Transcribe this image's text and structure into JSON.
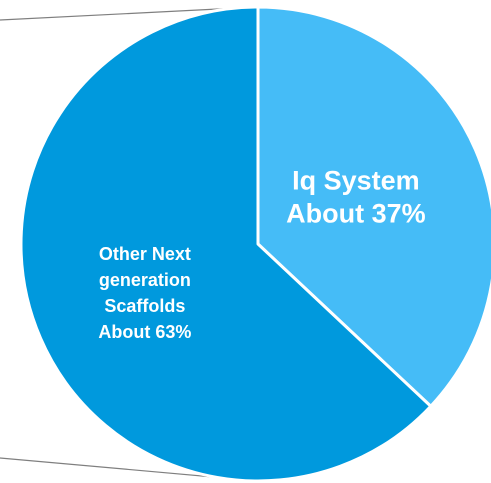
{
  "chart_data": {
    "type": "pie",
    "title": "",
    "start_angle_deg": 0,
    "direction": "clockwise",
    "slices": [
      {
        "label_lines": [
          "Iq System",
          "About 37%"
        ],
        "value": 37,
        "color": "#45bcf7"
      },
      {
        "label_lines": [
          "Other Next",
          "generation",
          "Scaffolds",
          "About 63%"
        ],
        "value": 63,
        "color": "#0099dd"
      }
    ],
    "slice_border_color": "#ffffff",
    "connector_color": "#7f7f7f",
    "grid": false,
    "legend": "none"
  }
}
